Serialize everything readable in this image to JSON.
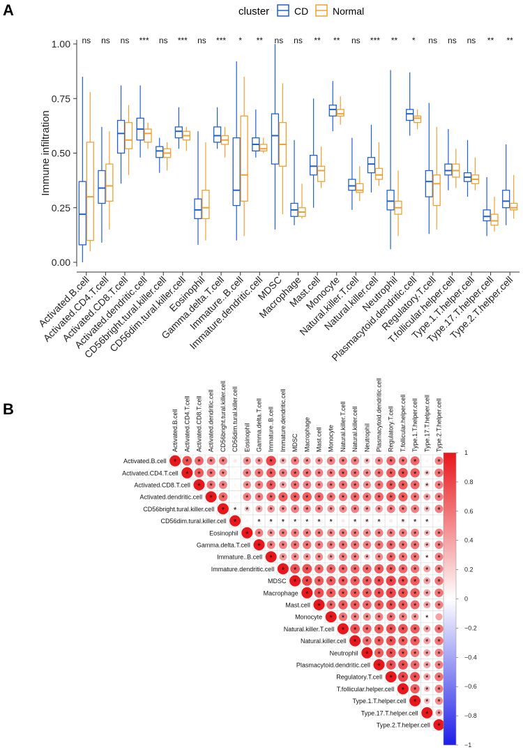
{
  "panels": {
    "a": "A",
    "b": "B"
  },
  "legend": {
    "title": "cluster",
    "cd": "CD",
    "normal": "Normal"
  },
  "colors": {
    "cd": "#1f5fd6",
    "normal": "#f0a030",
    "pos": "#e8171b",
    "neg": "#1e1ee8",
    "grid": "#d9d9d9"
  },
  "chart_data": [
    {
      "type": "box",
      "title": "",
      "ylabel": "Immune infiltration",
      "xlabel": "",
      "ylim": [
        0.0,
        1.0
      ],
      "yticks": [
        "0.00",
        "0.25",
        "0.50",
        "0.75",
        "1.00"
      ],
      "categories": [
        "Activated.B.cell",
        "Activated.CD4.T.cell",
        "Activated.CD8.T.cell",
        "Activated.dendritic.cell",
        "CD56bright.tural.killer.cell",
        "CD56dim.tural.killer.cell",
        "Eosinophil",
        "Gamma.delta.T.cell",
        "Immature..B.cell",
        "Immature.dendritic.cell",
        "MDSC",
        "Macrophage",
        "Mast.cell",
        "Monocyte",
        "Natural.killer.T.cell",
        "Natural.killer.cell",
        "Neutrophil",
        "Plasmacytoid.dendritic.cell",
        "Regulatory.T.cell",
        "T.follicular.helper.cell",
        "Type.1.T.helper.cell",
        "Type.17.T.helper.cell",
        "Type.2.T.helper.cell"
      ],
      "significance": [
        "ns",
        "ns",
        "ns",
        "***",
        "ns",
        "***",
        "ns",
        "***",
        "*",
        "**",
        "ns",
        "ns",
        "**",
        "**",
        "ns",
        "***",
        "**",
        "*",
        "ns",
        "ns",
        "ns",
        "**",
        "**"
      ],
      "series": [
        {
          "name": "CD",
          "boxes": [
            [
              0.0,
              0.08,
              0.22,
              0.37,
              0.85
            ],
            [
              0.09,
              0.27,
              0.34,
              0.42,
              0.62
            ],
            [
              0.36,
              0.5,
              0.59,
              0.65,
              0.81
            ],
            [
              0.48,
              0.56,
              0.61,
              0.66,
              0.81
            ],
            [
              0.41,
              0.48,
              0.51,
              0.53,
              0.57
            ],
            [
              0.52,
              0.57,
              0.6,
              0.62,
              0.71
            ],
            [
              0.08,
              0.2,
              0.24,
              0.29,
              0.6
            ],
            [
              0.52,
              0.55,
              0.58,
              0.62,
              0.71
            ],
            [
              0.1,
              0.26,
              0.33,
              0.57,
              0.92
            ],
            [
              0.48,
              0.51,
              0.54,
              0.57,
              0.7
            ],
            [
              0.15,
              0.45,
              0.58,
              0.68,
              1.0
            ],
            [
              0.17,
              0.21,
              0.24,
              0.27,
              0.56
            ],
            [
              0.25,
              0.4,
              0.44,
              0.49,
              0.75
            ],
            [
              0.6,
              0.67,
              0.7,
              0.72,
              0.83
            ],
            [
              0.24,
              0.33,
              0.35,
              0.38,
              0.57
            ],
            [
              0.32,
              0.41,
              0.45,
              0.48,
              0.63
            ],
            [
              0.06,
              0.24,
              0.28,
              0.33,
              0.88
            ],
            [
              0.58,
              0.65,
              0.68,
              0.7,
              0.87
            ],
            [
              0.13,
              0.3,
              0.37,
              0.42,
              0.73
            ],
            [
              0.33,
              0.4,
              0.42,
              0.45,
              0.61
            ],
            [
              0.3,
              0.37,
              0.39,
              0.41,
              0.56
            ],
            [
              0.12,
              0.19,
              0.21,
              0.24,
              0.39
            ],
            [
              0.17,
              0.25,
              0.28,
              0.33,
              0.54
            ]
          ]
        },
        {
          "name": "Normal",
          "boxes": [
            [
              0.05,
              0.1,
              0.3,
              0.55,
              0.78
            ],
            [
              0.15,
              0.28,
              0.35,
              0.45,
              0.6
            ],
            [
              0.4,
              0.52,
              0.56,
              0.64,
              0.72
            ],
            [
              0.52,
              0.55,
              0.59,
              0.61,
              0.64
            ],
            [
              0.42,
              0.48,
              0.5,
              0.52,
              0.55
            ],
            [
              0.51,
              0.56,
              0.58,
              0.6,
              0.62
            ],
            [
              0.1,
              0.2,
              0.25,
              0.33,
              0.55
            ],
            [
              0.48,
              0.54,
              0.56,
              0.58,
              0.62
            ],
            [
              0.12,
              0.28,
              0.4,
              0.67,
              0.85
            ],
            [
              0.5,
              0.51,
              0.52,
              0.54,
              0.57
            ],
            [
              0.22,
              0.44,
              0.54,
              0.64,
              0.82
            ],
            [
              0.2,
              0.21,
              0.23,
              0.25,
              0.36
            ],
            [
              0.34,
              0.37,
              0.42,
              0.44,
              0.53
            ],
            [
              0.63,
              0.67,
              0.68,
              0.7,
              0.76
            ],
            [
              0.28,
              0.32,
              0.33,
              0.36,
              0.44
            ],
            [
              0.35,
              0.38,
              0.4,
              0.43,
              0.55
            ],
            [
              0.12,
              0.22,
              0.25,
              0.28,
              0.42
            ],
            [
              0.61,
              0.64,
              0.66,
              0.67,
              0.7
            ],
            [
              0.15,
              0.26,
              0.36,
              0.4,
              0.62
            ],
            [
              0.34,
              0.39,
              0.42,
              0.45,
              0.52
            ],
            [
              0.33,
              0.36,
              0.38,
              0.4,
              0.48
            ],
            [
              0.14,
              0.17,
              0.19,
              0.22,
              0.3
            ],
            [
              0.2,
              0.24,
              0.25,
              0.27,
              0.4
            ]
          ]
        }
      ]
    },
    {
      "type": "heatmap",
      "subtype": "correlation-upper-triangle",
      "labels": [
        "Activated.B.cell",
        "Activated.CD4.T.cell",
        "Activated.CD8.T.cell",
        "Activated.dendritic.cell",
        "CD56bright.tural.killer.cell",
        "CD56dim.tural.killer.cell",
        "Eosinophil",
        "Gamma.delta.T.cell",
        "Immature..B.cell",
        "Immature.dendritic.cell",
        "MDSC",
        "Macrophage",
        "Mast.cell",
        "Monocyte",
        "Natural.killer.T.cell",
        "Natural.killer.cell",
        "Neutrophil",
        "Plasmacytoid.dendritic.cell",
        "Regulatory.T.cell",
        "T.follicular.helper.cell",
        "Type.1.T.helper.cell",
        "Type.17.T.helper.cell",
        "Type.2.T.helper.cell"
      ],
      "colorbar_ticks": [
        "1",
        "0.8",
        "0.6",
        "0.4",
        "0.2",
        "0",
        "−0.2",
        "−0.4",
        "−0.6",
        "−0.8",
        "−1"
      ],
      "range": [
        -1,
        1
      ],
      "significance_marker": "*",
      "rows": [
        [
          1.0,
          0.75,
          0.65,
          0.55,
          0.55,
          0.1,
          0.5,
          0.45,
          0.8,
          0.35,
          0.55,
          0.45,
          0.45,
          0.55,
          0.55,
          0.55,
          0.3,
          0.5,
          0.65,
          0.6,
          0.65,
          0.05,
          0.55
        ],
        [
          0.75,
          1.0,
          0.7,
          0.6,
          0.5,
          0.05,
          0.55,
          0.6,
          0.7,
          0.55,
          0.65,
          0.6,
          0.55,
          0.55,
          0.65,
          0.6,
          0.5,
          0.6,
          0.7,
          0.75,
          0.7,
          0.25,
          0.6
        ],
        [
          0.65,
          0.7,
          1.0,
          0.6,
          0.55,
          0.05,
          0.5,
          0.55,
          0.7,
          0.4,
          0.6,
          0.55,
          0.5,
          0.55,
          0.6,
          0.6,
          0.5,
          0.6,
          0.7,
          0.7,
          0.65,
          0.2,
          0.55
        ],
        [
          0.55,
          0.6,
          0.6,
          1.0,
          0.65,
          0.05,
          0.55,
          0.55,
          0.65,
          0.7,
          0.7,
          0.7,
          0.65,
          0.6,
          0.6,
          0.65,
          0.6,
          0.65,
          0.7,
          0.7,
          0.6,
          0.4,
          0.55
        ],
        [
          0.55,
          0.5,
          0.55,
          0.65,
          1.0,
          0.1,
          0.25,
          0.4,
          0.45,
          0.45,
          0.55,
          0.5,
          0.5,
          0.45,
          0.5,
          0.55,
          0.4,
          0.45,
          0.55,
          0.55,
          0.55,
          0.3,
          0.55
        ],
        [
          0.1,
          0.05,
          0.05,
          0.05,
          0.1,
          1.0,
          0.05,
          0.1,
          0.1,
          0.1,
          0.05,
          0.05,
          0.1,
          0.05,
          0.1,
          0.1,
          0.15,
          0.1,
          0.1,
          0.15,
          0.1,
          0.1,
          0.05
        ],
        [
          0.5,
          0.55,
          0.5,
          0.55,
          0.25,
          0.05,
          1.0,
          0.55,
          0.45,
          0.55,
          0.55,
          0.55,
          0.55,
          0.5,
          0.55,
          0.55,
          0.5,
          0.55,
          0.55,
          0.55,
          0.55,
          0.3,
          0.55
        ],
        [
          0.45,
          0.6,
          0.55,
          0.55,
          0.4,
          0.1,
          0.55,
          1.0,
          0.55,
          0.55,
          0.6,
          0.6,
          0.55,
          0.55,
          0.6,
          0.6,
          0.55,
          0.6,
          0.65,
          0.6,
          0.6,
          0.3,
          0.55
        ],
        [
          0.8,
          0.7,
          0.7,
          0.65,
          0.45,
          0.1,
          0.45,
          0.55,
          1.0,
          0.45,
          0.5,
          0.45,
          0.5,
          0.4,
          0.55,
          0.55,
          0.3,
          0.5,
          0.65,
          0.6,
          0.6,
          0.1,
          0.55
        ],
        [
          0.35,
          0.55,
          0.4,
          0.7,
          0.45,
          0.1,
          0.55,
          0.55,
          0.45,
          1.0,
          0.75,
          0.75,
          0.65,
          0.65,
          0.65,
          0.65,
          0.65,
          0.7,
          0.7,
          0.65,
          0.6,
          0.4,
          0.55
        ],
        [
          0.55,
          0.65,
          0.6,
          0.7,
          0.55,
          0.05,
          0.55,
          0.6,
          0.5,
          0.75,
          1.0,
          0.8,
          0.7,
          0.7,
          0.7,
          0.7,
          0.7,
          0.75,
          0.8,
          0.75,
          0.7,
          0.4,
          0.6
        ],
        [
          0.45,
          0.6,
          0.55,
          0.7,
          0.5,
          0.05,
          0.55,
          0.6,
          0.45,
          0.75,
          0.8,
          1.0,
          0.75,
          0.7,
          0.7,
          0.7,
          0.7,
          0.75,
          0.8,
          0.75,
          0.7,
          0.4,
          0.6
        ],
        [
          0.45,
          0.55,
          0.5,
          0.65,
          0.5,
          0.1,
          0.55,
          0.55,
          0.5,
          0.65,
          0.7,
          0.75,
          1.0,
          0.65,
          0.7,
          0.7,
          0.65,
          0.7,
          0.75,
          0.7,
          0.65,
          0.4,
          0.55
        ],
        [
          0.55,
          0.55,
          0.55,
          0.6,
          0.45,
          0.05,
          0.5,
          0.55,
          0.4,
          0.65,
          0.7,
          0.7,
          0.65,
          1.0,
          0.6,
          0.55,
          0.5,
          0.55,
          0.6,
          0.55,
          0.45,
          0.1,
          0.4
        ],
        [
          0.55,
          0.65,
          0.6,
          0.6,
          0.5,
          0.1,
          0.55,
          0.6,
          0.55,
          0.65,
          0.7,
          0.7,
          0.7,
          0.6,
          1.0,
          0.75,
          0.65,
          0.7,
          0.75,
          0.75,
          0.7,
          0.4,
          0.6
        ],
        [
          0.55,
          0.6,
          0.6,
          0.65,
          0.55,
          0.1,
          0.55,
          0.6,
          0.55,
          0.65,
          0.7,
          0.7,
          0.7,
          0.55,
          0.75,
          1.0,
          0.65,
          0.7,
          0.75,
          0.7,
          0.7,
          0.4,
          0.6
        ],
        [
          0.3,
          0.5,
          0.5,
          0.6,
          0.4,
          0.15,
          0.5,
          0.55,
          0.3,
          0.65,
          0.7,
          0.7,
          0.65,
          0.5,
          0.65,
          0.65,
          1.0,
          0.7,
          0.75,
          0.7,
          0.6,
          0.4,
          0.55
        ],
        [
          0.5,
          0.6,
          0.6,
          0.65,
          0.45,
          0.1,
          0.55,
          0.6,
          0.5,
          0.7,
          0.75,
          0.75,
          0.7,
          0.55,
          0.7,
          0.7,
          0.7,
          1.0,
          0.75,
          0.75,
          0.65,
          0.4,
          0.55
        ],
        [
          0.65,
          0.7,
          0.7,
          0.7,
          0.55,
          0.1,
          0.55,
          0.65,
          0.65,
          0.7,
          0.8,
          0.8,
          0.75,
          0.6,
          0.75,
          0.75,
          0.75,
          0.75,
          1.0,
          0.8,
          0.75,
          0.4,
          0.6
        ],
        [
          0.6,
          0.75,
          0.7,
          0.7,
          0.55,
          0.15,
          0.55,
          0.6,
          0.6,
          0.65,
          0.75,
          0.75,
          0.7,
          0.55,
          0.75,
          0.7,
          0.7,
          0.75,
          0.8,
          1.0,
          0.7,
          0.3,
          0.55
        ],
        [
          0.65,
          0.7,
          0.65,
          0.6,
          0.55,
          0.1,
          0.55,
          0.6,
          0.6,
          0.6,
          0.7,
          0.7,
          0.65,
          0.45,
          0.7,
          0.7,
          0.6,
          0.65,
          0.75,
          0.7,
          1.0,
          0.3,
          0.5
        ],
        [
          0.05,
          0.25,
          0.2,
          0.4,
          0.3,
          0.1,
          0.3,
          0.3,
          0.1,
          0.4,
          0.4,
          0.4,
          0.4,
          0.1,
          0.4,
          0.4,
          0.4,
          0.4,
          0.4,
          0.3,
          0.3,
          1.0,
          0.4
        ],
        [
          0.55,
          0.6,
          0.55,
          0.55,
          0.55,
          0.05,
          0.55,
          0.55,
          0.55,
          0.55,
          0.6,
          0.6,
          0.55,
          0.4,
          0.6,
          0.6,
          0.55,
          0.55,
          0.6,
          0.55,
          0.5,
          0.4,
          1.0
        ]
      ],
      "nonsignificant": [
        [
          0,
          5
        ],
        [
          0,
          21
        ],
        [
          1,
          5
        ],
        [
          2,
          5
        ],
        [
          3,
          5
        ],
        [
          5,
          6
        ],
        [
          5,
          14
        ],
        [
          5,
          18
        ],
        [
          5,
          22
        ],
        [
          13,
          22
        ]
      ]
    }
  ]
}
